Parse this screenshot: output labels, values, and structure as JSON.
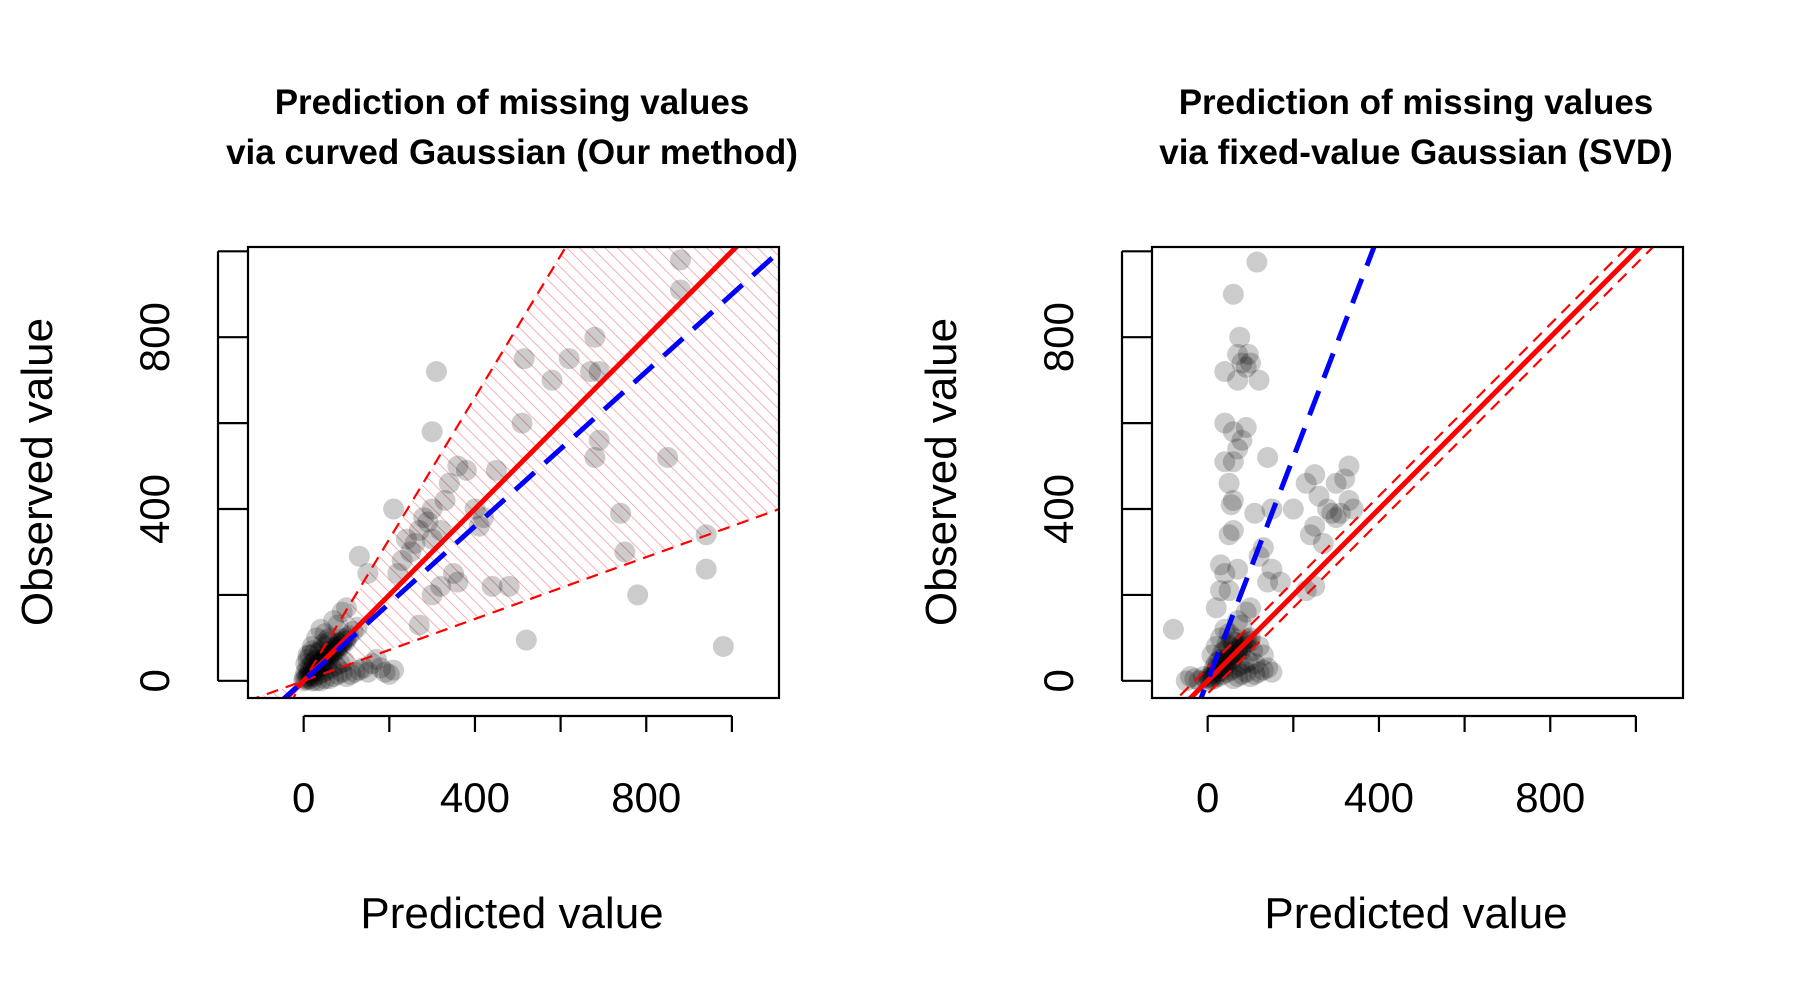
{
  "chart_data": [
    {
      "type": "scatter",
      "title": [
        "Prediction of missing values",
        "via curved Gaussian (Our method)"
      ],
      "xlabel": "Predicted value",
      "ylabel": "Observed value",
      "xlim": [
        -130,
        1110
      ],
      "ylim": [
        -40,
        1010
      ],
      "x_ticks": [
        0,
        200,
        400,
        600,
        800,
        1000
      ],
      "x_tick_labels": [
        "0",
        "",
        "400",
        "",
        "800",
        ""
      ],
      "y_ticks": [
        0,
        200,
        400,
        600,
        800,
        1000
      ],
      "y_tick_labels": [
        "0",
        "",
        "400",
        "",
        "800",
        ""
      ],
      "colors": {
        "points": "#000000",
        "fit_line": "#ff0000",
        "reference_line": "#0000ff",
        "band": "#ff8090"
      },
      "grid": false,
      "fit_line": {
        "slope": 1.0,
        "intercept": 0
      },
      "reference_line": {
        "slope": 0.9,
        "intercept": 0
      },
      "band": {
        "upper_slope": 1.65,
        "lower_slope": 0.36
      },
      "points": [
        [
          310,
          720
        ],
        [
          300,
          580
        ],
        [
          515,
          750
        ],
        [
          510,
          600
        ],
        [
          580,
          700
        ],
        [
          620,
          750
        ],
        [
          680,
          800
        ],
        [
          690,
          720
        ],
        [
          670,
          720
        ],
        [
          690,
          560
        ],
        [
          680,
          520
        ],
        [
          880,
          980
        ],
        [
          880,
          910
        ],
        [
          850,
          520
        ],
        [
          740,
          390
        ],
        [
          750,
          300
        ],
        [
          940,
          340
        ],
        [
          940,
          260
        ],
        [
          980,
          80
        ],
        [
          780,
          200
        ],
        [
          450,
          490
        ],
        [
          380,
          490
        ],
        [
          360,
          500
        ],
        [
          340,
          460
        ],
        [
          330,
          420
        ],
        [
          300,
          400
        ],
        [
          280,
          380
        ],
        [
          270,
          350
        ],
        [
          260,
          320
        ],
        [
          250,
          300
        ],
        [
          230,
          280
        ],
        [
          220,
          250
        ],
        [
          210,
          400
        ],
        [
          480,
          220
        ],
        [
          440,
          220
        ],
        [
          420,
          380
        ],
        [
          360,
          230
        ],
        [
          350,
          250
        ],
        [
          320,
          220
        ],
        [
          300,
          200
        ],
        [
          130,
          290
        ],
        [
          150,
          250
        ],
        [
          520,
          95
        ],
        [
          290,
          370
        ],
        [
          300,
          330
        ],
        [
          320,
          350
        ],
        [
          270,
          130
        ],
        [
          240,
          330
        ],
        [
          400,
          400
        ],
        [
          410,
          360
        ],
        [
          5,
          5
        ],
        [
          10,
          10
        ],
        [
          15,
          5
        ],
        [
          20,
          20
        ],
        [
          25,
          10
        ],
        [
          30,
          30
        ],
        [
          35,
          15
        ],
        [
          40,
          40
        ],
        [
          45,
          20
        ],
        [
          50,
          50
        ],
        [
          55,
          25
        ],
        [
          60,
          60
        ],
        [
          65,
          30
        ],
        [
          70,
          70
        ],
        [
          75,
          35
        ],
        [
          80,
          80
        ],
        [
          85,
          40
        ],
        [
          90,
          90
        ],
        [
          95,
          45
        ],
        [
          100,
          100
        ],
        [
          10,
          60
        ],
        [
          20,
          80
        ],
        [
          30,
          100
        ],
        [
          40,
          120
        ],
        [
          50,
          110
        ],
        [
          60,
          90
        ],
        [
          70,
          140
        ],
        [
          80,
          130
        ],
        [
          90,
          160
        ],
        [
          100,
          170
        ],
        [
          20,
          40
        ],
        [
          30,
          50
        ],
        [
          40,
          70
        ],
        [
          50,
          80
        ],
        [
          60,
          100
        ],
        [
          15,
          30
        ],
        [
          25,
          45
        ],
        [
          35,
          65
        ],
        [
          45,
          85
        ],
        [
          55,
          95
        ],
        [
          60,
          5
        ],
        [
          70,
          10
        ],
        [
          80,
          15
        ],
        [
          90,
          20
        ],
        [
          100,
          10
        ],
        [
          110,
          15
        ],
        [
          120,
          20
        ],
        [
          130,
          25
        ],
        [
          140,
          30
        ],
        [
          150,
          20
        ],
        [
          160,
          40
        ],
        [
          170,
          50
        ],
        [
          180,
          30
        ],
        [
          190,
          20
        ],
        [
          200,
          15
        ],
        [
          210,
          25
        ],
        [
          50,
          5
        ],
        [
          40,
          0
        ],
        [
          30,
          0
        ],
        [
          20,
          0
        ],
        [
          0,
          0
        ],
        [
          5,
          20
        ],
        [
          10,
          30
        ],
        [
          15,
          15
        ],
        [
          25,
          25
        ],
        [
          35,
          35
        ],
        [
          45,
          45
        ],
        [
          55,
          55
        ],
        [
          65,
          65
        ],
        [
          75,
          75
        ],
        [
          85,
          85
        ],
        [
          95,
          95
        ],
        [
          105,
          105
        ],
        [
          115,
          115
        ],
        [
          125,
          125
        ],
        [
          2,
          8
        ],
        [
          8,
          2
        ],
        [
          12,
          18
        ],
        [
          18,
          12
        ],
        [
          28,
          22
        ],
        [
          22,
          28
        ],
        [
          32,
          38
        ],
        [
          38,
          32
        ],
        [
          42,
          48
        ],
        [
          48,
          42
        ],
        [
          52,
          58
        ],
        [
          58,
          52
        ],
        [
          62,
          68
        ],
        [
          68,
          62
        ],
        [
          72,
          78
        ],
        [
          78,
          72
        ],
        [
          82,
          88
        ],
        [
          88,
          82
        ],
        [
          92,
          98
        ],
        [
          98,
          92
        ],
        [
          5,
          40
        ],
        [
          10,
          50
        ],
        [
          15,
          60
        ],
        [
          20,
          70
        ],
        [
          25,
          65
        ]
      ]
    },
    {
      "type": "scatter",
      "title": [
        "Prediction of missing values",
        "via fixed-value Gaussian (SVD)"
      ],
      "xlabel": "Predicted value",
      "ylabel": "Observed value",
      "xlim": [
        -130,
        1110
      ],
      "ylim": [
        -40,
        1010
      ],
      "x_ticks": [
        0,
        200,
        400,
        600,
        800,
        1000
      ],
      "x_tick_labels": [
        "0",
        "",
        "400",
        "",
        "800",
        ""
      ],
      "y_ticks": [
        0,
        200,
        400,
        600,
        800,
        1000
      ],
      "y_tick_labels": [
        "0",
        "",
        "400",
        "",
        "800",
        ""
      ],
      "colors": {
        "points": "#000000",
        "fit_line": "#ff0000",
        "reference_line": "#0000ff",
        "band": "#ff0000"
      },
      "grid": false,
      "fit_line": {
        "slope": 1.0,
        "intercept": 0
      },
      "reference_line": {
        "slope": 2.6,
        "intercept": 0
      },
      "band": {
        "upper_offset": 30,
        "lower_offset": -30
      },
      "points": [
        [
          115,
          975
        ],
        [
          60,
          900
        ],
        [
          75,
          800
        ],
        [
          70,
          760
        ],
        [
          80,
          740
        ],
        [
          90,
          730
        ],
        [
          95,
          760
        ],
        [
          100,
          740
        ],
        [
          120,
          700
        ],
        [
          40,
          720
        ],
        [
          70,
          700
        ],
        [
          40,
          600
        ],
        [
          60,
          580
        ],
        [
          90,
          590
        ],
        [
          80,
          560
        ],
        [
          70,
          540
        ],
        [
          40,
          510
        ],
        [
          60,
          510
        ],
        [
          140,
          520
        ],
        [
          50,
          460
        ],
        [
          60,
          420
        ],
        [
          55,
          410
        ],
        [
          60,
          350
        ],
        [
          50,
          340
        ],
        [
          70,
          260
        ],
        [
          30,
          270
        ],
        [
          40,
          250
        ],
        [
          30,
          210
        ],
        [
          50,
          210
        ],
        [
          20,
          170
        ],
        [
          -80,
          120
        ],
        [
          110,
          390
        ],
        [
          150,
          400
        ],
        [
          200,
          400
        ],
        [
          230,
          460
        ],
        [
          250,
          480
        ],
        [
          300,
          460
        ],
        [
          320,
          470
        ],
        [
          330,
          500
        ],
        [
          260,
          430
        ],
        [
          280,
          400
        ],
        [
          300,
          380
        ],
        [
          310,
          390
        ],
        [
          290,
          390
        ],
        [
          250,
          360
        ],
        [
          240,
          340
        ],
        [
          270,
          320
        ],
        [
          150,
          260
        ],
        [
          140,
          230
        ],
        [
          170,
          230
        ],
        [
          230,
          210
        ],
        [
          250,
          220
        ],
        [
          120,
          290
        ],
        [
          130,
          310
        ],
        [
          330,
          420
        ],
        [
          340,
          400
        ],
        [
          5,
          5
        ],
        [
          10,
          10
        ],
        [
          15,
          5
        ],
        [
          20,
          20
        ],
        [
          25,
          10
        ],
        [
          30,
          30
        ],
        [
          35,
          15
        ],
        [
          40,
          40
        ],
        [
          45,
          20
        ],
        [
          50,
          50
        ],
        [
          55,
          25
        ],
        [
          60,
          60
        ],
        [
          65,
          30
        ],
        [
          70,
          70
        ],
        [
          75,
          35
        ],
        [
          80,
          80
        ],
        [
          85,
          40
        ],
        [
          90,
          90
        ],
        [
          95,
          45
        ],
        [
          100,
          100
        ],
        [
          -50,
          0
        ],
        [
          -40,
          10
        ],
        [
          -30,
          5
        ],
        [
          -20,
          0
        ],
        [
          -10,
          10
        ],
        [
          0,
          0
        ],
        [
          10,
          60
        ],
        [
          20,
          80
        ],
        [
          30,
          100
        ],
        [
          40,
          120
        ],
        [
          50,
          110
        ],
        [
          60,
          90
        ],
        [
          70,
          140
        ],
        [
          80,
          130
        ],
        [
          90,
          160
        ],
        [
          100,
          170
        ],
        [
          20,
          40
        ],
        [
          30,
          50
        ],
        [
          40,
          70
        ],
        [
          50,
          80
        ],
        [
          60,
          5
        ],
        [
          70,
          10
        ],
        [
          80,
          15
        ],
        [
          90,
          20
        ],
        [
          100,
          10
        ],
        [
          110,
          15
        ],
        [
          120,
          20
        ],
        [
          130,
          25
        ],
        [
          140,
          30
        ],
        [
          150,
          20
        ],
        [
          60,
          100
        ],
        [
          15,
          30
        ],
        [
          25,
          45
        ],
        [
          35,
          65
        ],
        [
          45,
          85
        ],
        [
          55,
          95
        ],
        [
          130,
          60
        ],
        [
          110,
          40
        ],
        [
          120,
          80
        ],
        [
          105,
          70
        ],
        [
          2,
          8
        ],
        [
          8,
          2
        ],
        [
          12,
          18
        ],
        [
          18,
          12
        ],
        [
          28,
          22
        ],
        [
          22,
          28
        ],
        [
          32,
          38
        ],
        [
          38,
          32
        ],
        [
          42,
          48
        ],
        [
          48,
          42
        ],
        [
          52,
          58
        ],
        [
          58,
          52
        ],
        [
          62,
          68
        ],
        [
          68,
          62
        ],
        [
          72,
          78
        ],
        [
          78,
          72
        ],
        [
          82,
          88
        ],
        [
          88,
          82
        ],
        [
          92,
          98
        ],
        [
          98,
          92
        ]
      ]
    }
  ]
}
